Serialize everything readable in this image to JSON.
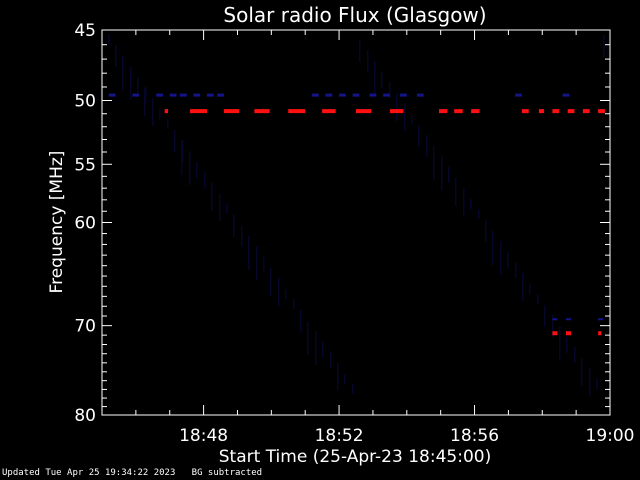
{
  "chart_data": {
    "type": "heatmap",
    "title": "Solar radio Flux (Glasgow)",
    "xlabel": "Start Time (25-Apr-23 18:45:00)",
    "ylabel": "Frequency [MHz]",
    "x_ticks": [
      "18:48",
      "18:52",
      "18:56",
      "19:00"
    ],
    "y_ticks": [
      45,
      50,
      55,
      60,
      70,
      80
    ],
    "xlim_minutes": [
      0,
      15
    ],
    "ylim_mhz": [
      45,
      80
    ],
    "y_scale": "log",
    "colors": {
      "background": "#000000",
      "weak": "#14148c",
      "mid": "#2a2aff",
      "strong": "#ff1010"
    },
    "red_band": {
      "freq_mhz": 50.8,
      "segments_minutes": [
        [
          1.85,
          1.95
        ],
        [
          2.6,
          3.1
        ],
        [
          3.6,
          4.05
        ],
        [
          4.5,
          4.95
        ],
        [
          5.5,
          6.0
        ],
        [
          6.5,
          6.9
        ],
        [
          7.5,
          7.95
        ],
        [
          8.5,
          8.9
        ],
        [
          9.95,
          10.2
        ],
        [
          10.4,
          10.65
        ],
        [
          10.9,
          11.15
        ],
        [
          12.4,
          12.6
        ],
        [
          12.9,
          13.05
        ],
        [
          13.3,
          13.5
        ],
        [
          13.75,
          13.95
        ],
        [
          14.2,
          14.4
        ],
        [
          14.65,
          14.85
        ]
      ]
    },
    "red_burst": {
      "freq_mhz": 70.8,
      "segments_minutes": [
        [
          13.3,
          13.45
        ],
        [
          13.7,
          13.85
        ],
        [
          14.65,
          14.75
        ]
      ]
    },
    "blue_band": {
      "freq_mhz": 49.6,
      "segments_minutes": [
        [
          0.2,
          0.4
        ],
        [
          0.9,
          1.1
        ],
        [
          1.6,
          1.8
        ],
        [
          2.0,
          2.2
        ],
        [
          2.3,
          2.5
        ],
        [
          2.7,
          2.9
        ],
        [
          3.1,
          3.3
        ],
        [
          3.4,
          3.6
        ],
        [
          6.2,
          6.4
        ],
        [
          6.6,
          6.8
        ],
        [
          7.0,
          7.2
        ],
        [
          7.4,
          7.6
        ],
        [
          7.9,
          8.1
        ],
        [
          8.3,
          8.5
        ],
        [
          8.8,
          9.0
        ],
        [
          9.3,
          9.5
        ],
        [
          12.2,
          12.4
        ],
        [
          13.6,
          13.8
        ]
      ]
    }
  },
  "footer": {
    "updated": "Updated Tue Apr 25 19:34:22 2023",
    "bg": "BG subtracted"
  }
}
